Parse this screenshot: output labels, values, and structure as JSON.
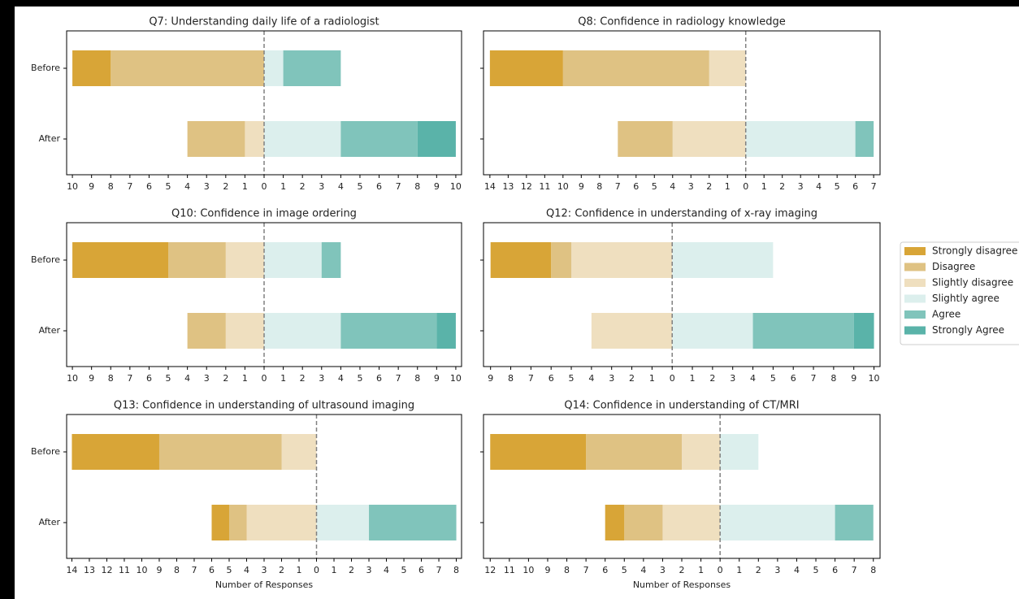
{
  "chart_data": [
    {
      "type": "bar",
      "title": "Q7: Understanding daily life of a radiologist",
      "categories": [
        "Before",
        "After"
      ],
      "series": [
        {
          "name": "Strongly disagree",
          "color": "#d8a537",
          "values": [
            2,
            0
          ]
        },
        {
          "name": "Disagree",
          "color": "#dfc283",
          "values": [
            8,
            3
          ]
        },
        {
          "name": "Slightly disagree",
          "color": "#efdfbf",
          "values": [
            0,
            1
          ]
        },
        {
          "name": "Slightly agree",
          "color": "#dcefed",
          "values": [
            1,
            4
          ]
        },
        {
          "name": "Agree",
          "color": "#80c4bb",
          "values": [
            3,
            4
          ]
        },
        {
          "name": "Strongly Agree",
          "color": "#5ab3a9",
          "values": [
            0,
            2
          ]
        }
      ],
      "xlim": [
        -10.3,
        10.3
      ],
      "xticks": [
        {
          "value": -10,
          "label": "10"
        },
        {
          "value": -9,
          "label": "9"
        },
        {
          "value": -8,
          "label": "8"
        },
        {
          "value": -7,
          "label": "7"
        },
        {
          "value": -6,
          "label": "6"
        },
        {
          "value": -5,
          "label": "5"
        },
        {
          "value": -4,
          "label": "4"
        },
        {
          "value": -3,
          "label": "3"
        },
        {
          "value": -2,
          "label": "2"
        },
        {
          "value": -1,
          "label": "1"
        },
        0,
        1,
        2,
        3,
        4,
        5,
        6,
        7,
        8,
        9,
        10
      ]
    },
    {
      "type": "bar",
      "title": "Q8: Confidence in radiology knowledge",
      "categories": [
        null,
        null
      ],
      "series": [
        {
          "color": "#d8a537",
          "values": [
            4,
            0
          ]
        },
        {
          "color": "#dfc283",
          "values": [
            8,
            3
          ]
        },
        {
          "color": "#efdfbf",
          "values": [
            2,
            4
          ]
        },
        {
          "color": "#dcefed",
          "values": [
            0,
            6
          ]
        },
        {
          "color": "#80c4bb",
          "values": [
            0,
            1
          ]
        },
        {
          "color": "#5ab3a9",
          "values": [
            0,
            0
          ]
        }
      ],
      "xlim": [
        -14.35,
        7.35
      ],
      "xticks": [
        {
          "value": -14,
          "label": "14"
        },
        {
          "value": -13,
          "label": "13"
        },
        {
          "value": -12,
          "label": "12"
        },
        {
          "value": -11,
          "label": "11"
        },
        {
          "value": -10,
          "label": "10"
        },
        {
          "value": -9,
          "label": "9"
        },
        {
          "value": -8,
          "label": "8"
        },
        {
          "value": -7,
          "label": "7"
        },
        {
          "value": -6,
          "label": "6"
        },
        {
          "value": -5,
          "label": "5"
        },
        {
          "value": -4,
          "label": "4"
        },
        {
          "value": -3,
          "label": "3"
        },
        {
          "value": -2,
          "label": "2"
        },
        {
          "value": -1,
          "label": "1"
        },
        0,
        1,
        2,
        3,
        4,
        5,
        6,
        7
      ]
    },
    {
      "type": "bar",
      "title": "Q10: Confidence in image ordering",
      "categories": [
        "Before",
        "After"
      ],
      "series": [
        {
          "color": "#d8a537",
          "values": [
            5,
            0
          ]
        },
        {
          "color": "#dfc283",
          "values": [
            3,
            2
          ]
        },
        {
          "color": "#efdfbf",
          "values": [
            2,
            2
          ]
        },
        {
          "color": "#dcefed",
          "values": [
            3,
            4
          ]
        },
        {
          "color": "#80c4bb",
          "values": [
            1,
            5
          ]
        },
        {
          "color": "#5ab3a9",
          "values": [
            0,
            1
          ]
        }
      ],
      "xlim": [
        -10.3,
        10.3
      ],
      "xticks": [
        {
          "value": -10,
          "label": "10"
        },
        {
          "value": -9,
          "label": "9"
        },
        {
          "value": -8,
          "label": "8"
        },
        {
          "value": -7,
          "label": "7"
        },
        {
          "value": -6,
          "label": "6"
        },
        {
          "value": -5,
          "label": "5"
        },
        {
          "value": -4,
          "label": "4"
        },
        {
          "value": -3,
          "label": "3"
        },
        {
          "value": -2,
          "label": "2"
        },
        {
          "value": -1,
          "label": "1"
        },
        0,
        1,
        2,
        3,
        4,
        5,
        6,
        7,
        8,
        9,
        10
      ]
    },
    {
      "type": "bar",
      "title": "Q12: Confidence in understanding of x-ray imaging",
      "categories": [
        null,
        null
      ],
      "series": [
        {
          "color": "#d8a537",
          "values": [
            3,
            0
          ]
        },
        {
          "color": "#dfc283",
          "values": [
            1,
            0
          ]
        },
        {
          "color": "#efdfbf",
          "values": [
            5,
            4
          ]
        },
        {
          "color": "#dcefed",
          "values": [
            5,
            4
          ]
        },
        {
          "color": "#80c4bb",
          "values": [
            0,
            5
          ]
        },
        {
          "color": "#5ab3a9",
          "values": [
            0,
            1
          ]
        }
      ],
      "xlim": [
        -9.35,
        10.3
      ],
      "xticks": [
        {
          "value": -9,
          "label": "9"
        },
        {
          "value": -8,
          "label": "8"
        },
        {
          "value": -7,
          "label": "7"
        },
        {
          "value": -6,
          "label": "6"
        },
        {
          "value": -5,
          "label": "5"
        },
        {
          "value": -4,
          "label": "4"
        },
        {
          "value": -3,
          "label": "3"
        },
        {
          "value": -2,
          "label": "2"
        },
        {
          "value": -1,
          "label": "1"
        },
        0,
        1,
        2,
        3,
        4,
        5,
        6,
        7,
        8,
        9,
        10
      ]
    },
    {
      "type": "bar",
      "title": "Q13: Confidence in understanding of ultrasound imaging",
      "categories": [
        "Before",
        "After"
      ],
      "xlabel": "Number of Responses",
      "series": [
        {
          "color": "#d8a537",
          "values": [
            5,
            1
          ]
        },
        {
          "color": "#dfc283",
          "values": [
            7,
            1
          ]
        },
        {
          "color": "#efdfbf",
          "values": [
            2,
            4
          ]
        },
        {
          "color": "#dcefed",
          "values": [
            0,
            3
          ]
        },
        {
          "color": "#80c4bb",
          "values": [
            0,
            5
          ]
        },
        {
          "color": "#5ab3a9",
          "values": [
            0,
            0
          ]
        }
      ],
      "xlim": [
        -14.3,
        8.3
      ],
      "xticks": [
        {
          "value": -14,
          "label": "14"
        },
        {
          "value": -13,
          "label": "13"
        },
        {
          "value": -12,
          "label": "12"
        },
        {
          "value": -11,
          "label": "11"
        },
        {
          "value": -10,
          "label": "10"
        },
        {
          "value": -9,
          "label": "9"
        },
        {
          "value": -8,
          "label": "8"
        },
        {
          "value": -7,
          "label": "7"
        },
        {
          "value": -6,
          "label": "6"
        },
        {
          "value": -5,
          "label": "5"
        },
        {
          "value": -4,
          "label": "4"
        },
        {
          "value": -3,
          "label": "3"
        },
        {
          "value": -2,
          "label": "2"
        },
        {
          "value": -1,
          "label": "1"
        },
        0,
        1,
        2,
        3,
        4,
        5,
        6,
        7,
        8
      ]
    },
    {
      "type": "bar",
      "title": "Q14: Confidence in understanding of CT/MRI",
      "categories": [
        null,
        null
      ],
      "xlabel": "Number of Responses",
      "series": [
        {
          "color": "#d8a537",
          "values": [
            5,
            1
          ]
        },
        {
          "color": "#dfc283",
          "values": [
            5,
            2
          ]
        },
        {
          "color": "#efdfbf",
          "values": [
            2,
            3
          ]
        },
        {
          "color": "#dcefed",
          "values": [
            2,
            6
          ]
        },
        {
          "color": "#80c4bb",
          "values": [
            0,
            2
          ]
        },
        {
          "color": "#5ab3a9",
          "values": [
            0,
            0
          ]
        }
      ],
      "xlim": [
        -12.35,
        8.35
      ],
      "xticks": [
        {
          "value": -12,
          "label": "12"
        },
        {
          "value": -11,
          "label": "11"
        },
        {
          "value": -10,
          "label": "10"
        },
        {
          "value": -9,
          "label": "9"
        },
        {
          "value": -8,
          "label": "8"
        },
        {
          "value": -7,
          "label": "7"
        },
        {
          "value": -6,
          "label": "6"
        },
        {
          "value": -5,
          "label": "5"
        },
        {
          "value": -4,
          "label": "4"
        },
        {
          "value": -3,
          "label": "3"
        },
        {
          "value": -2,
          "label": "2"
        },
        {
          "value": -1,
          "label": "1"
        },
        0,
        1,
        2,
        3,
        4,
        5,
        6,
        7,
        8
      ]
    }
  ]
}
